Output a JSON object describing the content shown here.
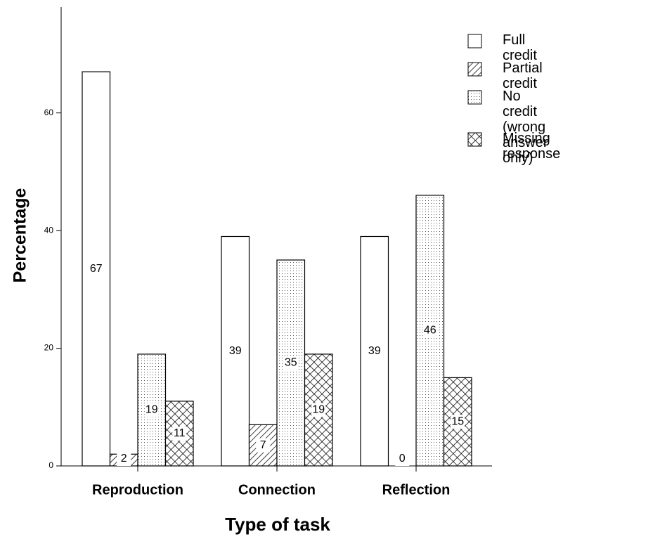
{
  "chart_data": {
    "type": "bar",
    "x_label": "Type of task",
    "y_label": "Percentage",
    "categories": [
      "Reproduction",
      "Connection",
      "Reflection"
    ],
    "series": [
      {
        "name": "Full credit",
        "color": "#ffffff",
        "pattern": "none",
        "values": [
          67,
          39,
          39
        ]
      },
      {
        "name": "Partial credit",
        "color": "#ffffff",
        "pattern": "hatch",
        "values": [
          2,
          7,
          0
        ]
      },
      {
        "name": "No credit\n (wrong answer only)",
        "color": "#ffffff",
        "pattern": "dots",
        "values": [
          19,
          35,
          46
        ]
      },
      {
        "name": "Missing response",
        "color": "#ffffff",
        "pattern": "crosshatch",
        "values": [
          11,
          19,
          15
        ]
      }
    ],
    "ylim": [
      0,
      78
    ],
    "yticks": [
      0,
      20,
      40,
      60
    ],
    "grid": false,
    "legend": "top-right",
    "value_labels_shown": true
  }
}
